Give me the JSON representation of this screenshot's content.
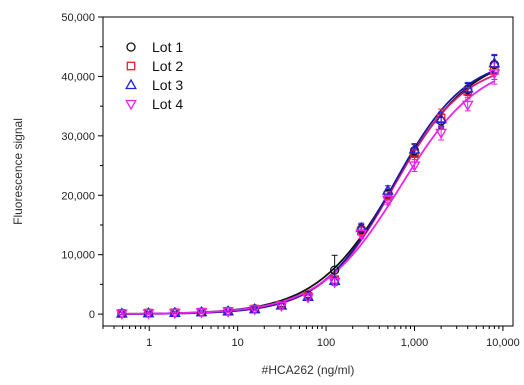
{
  "chart_data": {
    "type": "scatter",
    "title": "",
    "xlabel": "#HCA262 (ng/ml)",
    "ylabel": "Fluorescence signal",
    "x_scale": "log",
    "xlim": [
      0.3,
      13000
    ],
    "ylim": [
      -2000,
      50000
    ],
    "x_ticks": [
      1,
      10,
      100,
      1000,
      10000
    ],
    "x_tick_labels": [
      "1",
      "10",
      "100",
      "1,000",
      "10,000"
    ],
    "y_ticks": [
      0,
      10000,
      20000,
      30000,
      40000,
      50000
    ],
    "y_tick_labels": [
      "0",
      "10,000",
      "20,000",
      "30,000",
      "40,000",
      "50,000"
    ],
    "grid": false,
    "legend_position": "top-left",
    "x": [
      0.49,
      0.98,
      1.95,
      3.9,
      7.8,
      15.6,
      31.25,
      62.5,
      125,
      250,
      500,
      1000,
      2000,
      4000,
      8000
    ],
    "series": [
      {
        "name": "Lot 1",
        "marker": "circle",
        "color": "#111111",
        "curve_color": "#111111",
        "y": [
          150,
          200,
          250,
          350,
          500,
          900,
          1600,
          3200,
          7400,
          14300,
          20200,
          27500,
          32500,
          37800,
          42000
        ],
        "error": [
          200,
          200,
          200,
          200,
          200,
          250,
          300,
          400,
          2500,
          800,
          800,
          1000,
          1200,
          1000,
          1500
        ]
      },
      {
        "name": "Lot 2",
        "marker": "square",
        "color": "#e8202a",
        "curve_color": "#d6197a",
        "y": [
          120,
          180,
          230,
          330,
          480,
          850,
          1500,
          3000,
          5800,
          14000,
          20000,
          27000,
          33000,
          37500,
          41000
        ],
        "error": [
          200,
          200,
          200,
          200,
          200,
          250,
          300,
          400,
          600,
          800,
          800,
          1000,
          1500,
          1000,
          1500
        ]
      },
      {
        "name": "Lot 3",
        "marker": "triangle-up",
        "color": "#2222dd",
        "curve_color": "#1a1aa0",
        "y": [
          100,
          160,
          220,
          320,
          470,
          830,
          1450,
          2900,
          5600,
          14500,
          20800,
          27700,
          32800,
          38000,
          42200
        ],
        "error": [
          200,
          200,
          200,
          200,
          200,
          250,
          300,
          400,
          600,
          800,
          800,
          1000,
          1200,
          1000,
          1500
        ]
      },
      {
        "name": "Lot 4",
        "marker": "triangle-down",
        "color": "#ee22ee",
        "curve_color": "#ee22ee",
        "y": [
          80,
          140,
          200,
          300,
          450,
          800,
          1400,
          2800,
          5400,
          13500,
          19200,
          25000,
          30500,
          35200,
          40500
        ],
        "error": [
          200,
          200,
          200,
          200,
          200,
          250,
          300,
          400,
          600,
          800,
          800,
          1000,
          1200,
          1000,
          1800
        ]
      }
    ]
  }
}
